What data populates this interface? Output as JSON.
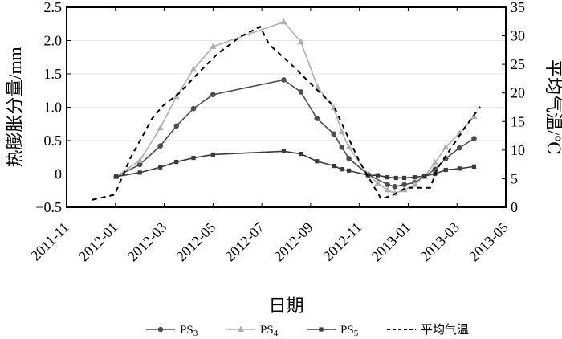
{
  "chart_data": {
    "type": "line",
    "x_unit": "months since 2011-11",
    "xlabel": "日期",
    "ylabel": "热膨胀分量/mm",
    "y2label": "平均气温/℃",
    "ylim": [
      -0.5,
      2.5
    ],
    "y2lim": [
      0,
      35
    ],
    "xlim": [
      0,
      18
    ],
    "yticks": [
      "2.5",
      "2.0",
      "1.5",
      "1.0",
      "0.5",
      "0",
      "−0.5"
    ],
    "ytick_values": [
      2.5,
      2.0,
      1.5,
      1.0,
      0.5,
      0,
      -0.5
    ],
    "y2ticks": [
      "35",
      "30",
      "25",
      "20",
      "15",
      "10",
      "5",
      "0"
    ],
    "y2tick_values": [
      35,
      30,
      25,
      20,
      15,
      10,
      5,
      0
    ],
    "xticks": [
      "2011-11",
      "2012-01",
      "2012-03",
      "2012-05",
      "2012-07",
      "2012-09",
      "2012-11",
      "2013-01",
      "2013-03",
      "2013-05"
    ],
    "xtick_values": [
      0,
      2,
      4,
      6,
      8,
      10,
      12,
      14,
      16,
      18
    ],
    "grid": "horizontal",
    "legend_position": "bottom",
    "series": [
      {
        "name": "PS3",
        "sub": "3",
        "base": "PS",
        "marker": "circle",
        "color": "#4d4d4d",
        "axis": "left",
        "x": [
          2.03,
          3.0,
          3.84,
          4.5,
          5.2,
          6.0,
          8.9,
          9.6,
          10.26,
          10.95,
          11.28,
          11.57,
          12.36,
          13.15,
          13.45,
          13.84,
          14.26,
          14.66,
          15.1,
          15.54,
          16.1,
          16.7
        ],
        "y": [
          -0.04,
          0.14,
          0.42,
          0.72,
          0.98,
          1.19,
          1.41,
          1.23,
          0.83,
          0.6,
          0.4,
          0.23,
          -0.01,
          -0.16,
          -0.19,
          -0.16,
          -0.13,
          -0.04,
          0.07,
          0.23,
          0.39,
          0.53
        ]
      },
      {
        "name": "PS4",
        "sub": "4",
        "base": "PS",
        "marker": "triangle",
        "color": "#b0b0b0",
        "axis": "left",
        "x": [
          2.03,
          3.0,
          3.84,
          4.5,
          5.2,
          6.0,
          8.9,
          9.6,
          10.3,
          10.95,
          11.28,
          11.57,
          12.36,
          12.75,
          13.15,
          13.45,
          13.84,
          14.26,
          14.66,
          15.1,
          15.54,
          16.1,
          16.7
        ],
        "y": [
          -0.04,
          0.2,
          0.69,
          1.16,
          1.57,
          1.91,
          2.28,
          1.98,
          1.29,
          0.99,
          0.63,
          0.4,
          -0.01,
          -0.14,
          -0.24,
          -0.29,
          -0.24,
          -0.16,
          -0.04,
          0.17,
          0.4,
          0.61,
          0.86
        ]
      },
      {
        "name": "PS5",
        "sub": "5",
        "base": "PS",
        "marker": "square",
        "color": "#3a3a3a",
        "axis": "left",
        "x": [
          2.03,
          3.0,
          3.84,
          4.5,
          5.2,
          6.0,
          8.9,
          9.6,
          10.26,
          10.95,
          11.28,
          11.57,
          12.36,
          12.75,
          13.15,
          13.5,
          13.84,
          14.26,
          14.66,
          15.1,
          15.54,
          16.1,
          16.7
        ],
        "y": [
          -0.04,
          0.02,
          0.1,
          0.18,
          0.24,
          0.29,
          0.34,
          0.3,
          0.19,
          0.12,
          0.07,
          0.05,
          -0.02,
          -0.02,
          -0.05,
          -0.06,
          -0.06,
          -0.05,
          -0.03,
          0.0,
          0.06,
          0.08,
          0.11
        ]
      },
      {
        "name": "平均气温",
        "marker": "none",
        "dash": true,
        "color": "#000000",
        "axis": "right",
        "x": [
          1.05,
          1.97,
          2.6,
          3.5,
          3.93,
          4.6,
          5.4,
          6.2,
          7.1,
          7.93,
          8.3,
          9.2,
          10.3,
          10.95,
          12.0,
          12.9,
          13.45,
          13.9,
          14.9,
          15.2,
          16.3,
          16.95
        ],
        "y": [
          1.3,
          2.2,
          8.5,
          15.5,
          17.7,
          19.9,
          23.5,
          26.9,
          29.8,
          31.6,
          28.5,
          25.0,
          20.4,
          17.7,
          8.0,
          1.4,
          2.3,
          3.4,
          3.4,
          6.8,
          13.8,
          17.6
        ]
      }
    ]
  }
}
